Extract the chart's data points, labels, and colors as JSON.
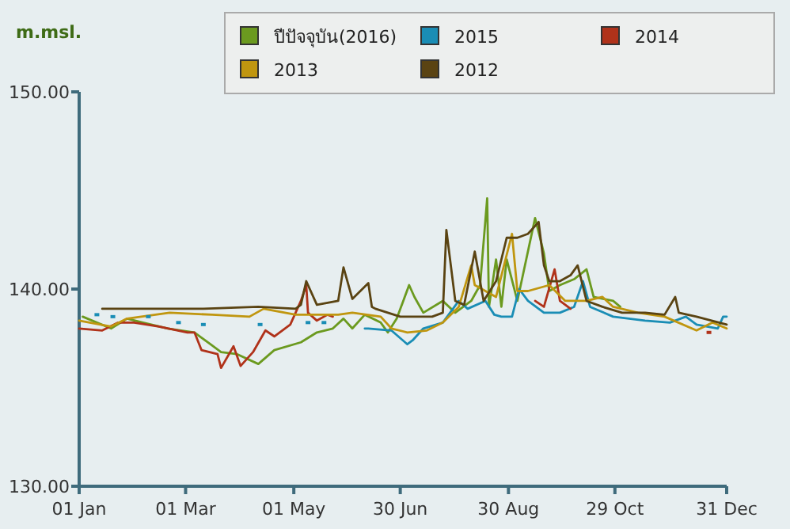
{
  "chart_data": {
    "type": "line",
    "ylabel": "m.msl.",
    "legend": "top",
    "xlim": [
      "--01-01",
      "--12-31"
    ],
    "xticks": [
      {
        "value": "--01-01",
        "label": "01 Jan"
      },
      {
        "value": "--03-01",
        "label": "01 Mar"
      },
      {
        "value": "--05-01",
        "label": "01 May"
      },
      {
        "value": "--06-30",
        "label": "30 Jun"
      },
      {
        "value": "--08-30",
        "label": "30 Aug"
      },
      {
        "value": "--10-29",
        "label": "29 Oct"
      },
      {
        "value": "--12-31",
        "label": "31 Dec"
      }
    ],
    "ylim": [
      130,
      150
    ],
    "yticks": [
      {
        "value": 130,
        "label": "130.00"
      },
      {
        "value": 140,
        "label": "140.00"
      },
      {
        "value": 150,
        "label": "150.00"
      }
    ],
    "series": [
      {
        "name": "ปีปัจจุบัน(2016)",
        "color": "#6b9a1f",
        "x": [
          "--01-03",
          "--01-19",
          "--01-28",
          "--02-06",
          "--02-20",
          "--03-06",
          "--03-15",
          "--03-21",
          "--03-30",
          "--04-11",
          "--04-20",
          "--05-05",
          "--05-14",
          "--05-23",
          "--05-29",
          "--06-03",
          "--06-10",
          "--06-19",
          "--06-23",
          "--06-28",
          "--07-05",
          "--07-08",
          "--07-13",
          "--07-24",
          "--07-31",
          "--08-09",
          "--08-14",
          "--08-18",
          "--08-19",
          "--08-23",
          "--08-26",
          "--08-29",
          "--09-04",
          "--09-14",
          "--09-19",
          "--09-22",
          "--09-28",
          "--10-06",
          "--10-13",
          "--10-17",
          "--10-28",
          "--11-01"
        ],
        "values": [
          138.6,
          138.0,
          138.5,
          138.3,
          138.0,
          137.8,
          137.2,
          136.8,
          136.7,
          136.2,
          136.9,
          137.3,
          137.8,
          138.0,
          138.5,
          138.0,
          138.7,
          138.3,
          137.8,
          138.5,
          140.2,
          139.6,
          138.8,
          139.4,
          138.8,
          139.4,
          140.2,
          144.6,
          139.1,
          141.5,
          139.1,
          141.5,
          139.4,
          143.6,
          141.8,
          139.9,
          140.2,
          140.5,
          141.0,
          139.6,
          139.4,
          139.1
        ]
      },
      {
        "name": "2015",
        "color": "#1a8db5",
        "x": [
          "--06-10",
          "--06-12",
          "--06-25",
          "--07-04",
          "--07-07",
          "--07-13",
          "--07-24",
          "--08-02",
          "--08-07",
          "--08-17",
          "--08-22",
          "--08-26",
          "--09-01",
          "--09-05",
          "--09-10",
          "--09-19",
          "--09-28",
          "--10-06",
          "--10-11",
          "--10-15",
          "--10-28",
          "--11-06",
          "--11-15",
          "--11-29",
          "--12-08",
          "--12-14",
          "--12-26",
          "--12-29",
          "--12-31"
        ],
        "values": [
          138.0,
          138.0,
          137.9,
          137.2,
          137.4,
          138.0,
          138.3,
          139.4,
          139.0,
          139.4,
          138.7,
          138.6,
          138.6,
          140.0,
          139.4,
          138.8,
          138.8,
          139.1,
          140.4,
          139.1,
          138.6,
          138.5,
          138.4,
          138.3,
          138.6,
          138.2,
          138.0,
          138.6,
          138.6
        ]
      },
      {
        "type": "scatter",
        "color": "#1a8db5",
        "x": [
          "--01-11",
          "--01-20",
          "--02-09",
          "--02-26",
          "--03-11",
          "--04-12",
          "--05-09",
          "--05-18"
        ],
        "values": [
          138.7,
          138.6,
          138.6,
          138.3,
          138.2,
          138.2,
          138.3,
          138.3
        ]
      },
      {
        "name": "2014",
        "color": "#b0321a",
        "x": [
          "--01-01",
          "--01-14",
          "--01-23",
          "--02-01",
          "--02-15",
          "--03-02",
          "--03-06",
          "--03-10",
          "--03-19",
          "--03-21",
          "--03-28",
          "--04-01",
          "--04-08",
          "--04-15",
          "--04-20",
          "--04-29",
          "--05-05",
          "--05-08",
          "--05-09",
          "--05-14",
          "--05-20",
          "--05-23"
        ],
        "values": [
          138.0,
          137.9,
          138.3,
          138.3,
          138.1,
          137.8,
          137.8,
          136.9,
          136.7,
          136.0,
          137.1,
          136.1,
          136.8,
          137.9,
          137.6,
          138.2,
          139.4,
          140.2,
          138.8,
          138.4,
          138.7,
          138.6
        ]
      },
      {
        "color": "#b0321a",
        "x": [
          "--09-14",
          "--09-19",
          "--09-25",
          "--09-28",
          "--10-04"
        ],
        "values": [
          139.4,
          139.1,
          141.0,
          139.4,
          139.0
        ]
      },
      {
        "type": "scatter",
        "color": "#b0321a",
        "x": [
          "--12-21"
        ],
        "values": [
          137.8
        ]
      },
      {
        "name": "2013",
        "color": "#c0960f",
        "x": [
          "--01-01",
          "--01-19",
          "--01-28",
          "--02-21",
          "--03-16",
          "--04-06",
          "--04-14",
          "--05-02",
          "--05-26",
          "--06-03",
          "--06-19",
          "--06-25",
          "--07-04",
          "--07-15",
          "--07-24",
          "--08-02",
          "--08-09",
          "--08-11",
          "--08-23",
          "--09-01",
          "--09-04",
          "--09-10",
          "--09-22",
          "--10-01",
          "--10-13",
          "--10-22",
          "--10-28",
          "--11-11",
          "--11-26",
          "--12-14",
          "--12-23",
          "--12-31"
        ],
        "values": [
          138.4,
          138.1,
          138.5,
          138.8,
          138.7,
          138.6,
          139.0,
          138.7,
          138.7,
          138.8,
          138.6,
          138.0,
          137.8,
          137.9,
          138.3,
          139.1,
          141.2,
          140.2,
          139.6,
          142.8,
          139.9,
          139.9,
          140.2,
          139.4,
          139.4,
          139.6,
          139.1,
          138.8,
          138.6,
          137.9,
          138.3,
          138.0
        ]
      },
      {
        "name": "2012",
        "color": "#5a4312",
        "x": [
          "--01-14",
          "--02-10",
          "--03-11",
          "--04-11",
          "--05-02",
          "--05-05",
          "--05-08",
          "--05-14",
          "--05-26",
          "--05-29",
          "--06-03",
          "--06-12",
          "--06-14",
          "--06-16",
          "--06-30",
          "--07-18",
          "--07-24",
          "--07-26",
          "--07-31",
          "--08-05",
          "--08-11",
          "--08-16",
          "--08-23",
          "--08-29",
          "--09-04",
          "--09-10",
          "--09-16",
          "--09-19",
          "--09-22",
          "--09-28",
          "--10-04",
          "--10-08",
          "--10-13",
          "--10-22",
          "--11-02",
          "--11-15",
          "--11-26",
          "--12-02",
          "--12-04",
          "--12-14",
          "--12-31"
        ],
        "values": [
          139.0,
          139.0,
          139.0,
          139.1,
          139.0,
          139.2,
          140.4,
          139.2,
          139.4,
          141.1,
          139.5,
          140.3,
          139.1,
          139.0,
          138.6,
          138.6,
          138.8,
          143.0,
          139.4,
          139.2,
          141.9,
          139.4,
          140.4,
          142.6,
          142.6,
          142.8,
          143.4,
          141.2,
          140.4,
          140.4,
          140.7,
          141.2,
          139.4,
          139.1,
          138.8,
          138.8,
          138.7,
          139.6,
          138.8,
          138.6,
          138.2
        ]
      }
    ]
  }
}
